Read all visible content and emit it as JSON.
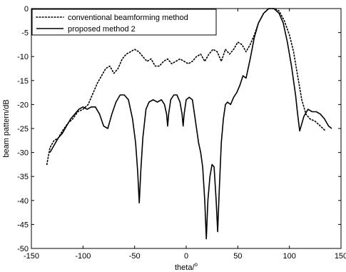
{
  "chart_data": {
    "type": "line",
    "title": "",
    "xlabel": "theta/",
    "xlabel_sup": "o",
    "ylabel": "beam pattern/dB",
    "xlim": [
      -150,
      150
    ],
    "ylim": [
      -50,
      0
    ],
    "xticks": [
      -150,
      -100,
      -50,
      0,
      50,
      100,
      150
    ],
    "yticks": [
      0,
      -5,
      -10,
      -15,
      -20,
      -25,
      -30,
      -35,
      -40,
      -45,
      -50
    ],
    "grid": false,
    "legend_position": "top-left",
    "series": [
      {
        "name": "conventional beamforming method",
        "style": "dotted",
        "color": "#000000",
        "points": [
          [
            -135,
            -32.5
          ],
          [
            -132,
            -29
          ],
          [
            -128,
            -27.5
          ],
          [
            -124,
            -27
          ],
          [
            -120,
            -25.5
          ],
          [
            -115,
            -24
          ],
          [
            -110,
            -23
          ],
          [
            -105,
            -21.5
          ],
          [
            -100,
            -21
          ],
          [
            -95,
            -20
          ],
          [
            -90,
            -17.5
          ],
          [
            -86,
            -15.5
          ],
          [
            -82,
            -14
          ],
          [
            -78,
            -12.5
          ],
          [
            -74,
            -12
          ],
          [
            -70,
            -13.5
          ],
          [
            -66,
            -12.5
          ],
          [
            -62,
            -10.5
          ],
          [
            -58,
            -9.5
          ],
          [
            -54,
            -9
          ],
          [
            -50,
            -8.5
          ],
          [
            -46,
            -9
          ],
          [
            -42,
            -10
          ],
          [
            -38,
            -11
          ],
          [
            -34,
            -10.5
          ],
          [
            -30,
            -12
          ],
          [
            -26,
            -12
          ],
          [
            -22,
            -11
          ],
          [
            -18,
            -10.5
          ],
          [
            -14,
            -11.5
          ],
          [
            -10,
            -11
          ],
          [
            -6,
            -10.5
          ],
          [
            -2,
            -11
          ],
          [
            2,
            -11.5
          ],
          [
            6,
            -11
          ],
          [
            10,
            -10
          ],
          [
            14,
            -9.5
          ],
          [
            18,
            -11
          ],
          [
            22,
            -9.5
          ],
          [
            26,
            -8.5
          ],
          [
            30,
            -9
          ],
          [
            34,
            -11
          ],
          [
            38,
            -8.5
          ],
          [
            42,
            -9.5
          ],
          [
            46,
            -8.5
          ],
          [
            50,
            -7
          ],
          [
            54,
            -7.5
          ],
          [
            58,
            -9
          ],
          [
            62,
            -7.5
          ],
          [
            66,
            -5.5
          ],
          [
            70,
            -3
          ],
          [
            75,
            -1
          ],
          [
            80,
            0
          ],
          [
            85,
            0
          ],
          [
            90,
            -0.5
          ],
          [
            95,
            -2.5
          ],
          [
            100,
            -5.5
          ],
          [
            104,
            -9
          ],
          [
            108,
            -14
          ],
          [
            112,
            -19
          ],
          [
            116,
            -22
          ],
          [
            120,
            -23
          ],
          [
            125,
            -23.5
          ],
          [
            130,
            -24.5
          ],
          [
            135,
            -25.5
          ]
        ]
      },
      {
        "name": "proposed method 2",
        "style": "solid",
        "color": "#000000",
        "points": [
          [
            -132,
            -30
          ],
          [
            -128,
            -28.5
          ],
          [
            -124,
            -27
          ],
          [
            -120,
            -26
          ],
          [
            -116,
            -24.5
          ],
          [
            -112,
            -23
          ],
          [
            -108,
            -22
          ],
          [
            -104,
            -21
          ],
          [
            -100,
            -20.5
          ],
          [
            -96,
            -21
          ],
          [
            -92,
            -20.5
          ],
          [
            -88,
            -20.5
          ],
          [
            -84,
            -22
          ],
          [
            -80,
            -24.5
          ],
          [
            -76,
            -25
          ],
          [
            -72,
            -22
          ],
          [
            -68,
            -19.5
          ],
          [
            -64,
            -18
          ],
          [
            -60,
            -18
          ],
          [
            -56,
            -19
          ],
          [
            -52,
            -23
          ],
          [
            -49,
            -28
          ],
          [
            -47,
            -34
          ],
          [
            -45.5,
            -40.5
          ],
          [
            -44,
            -34
          ],
          [
            -42,
            -27
          ],
          [
            -39,
            -21
          ],
          [
            -36,
            -19.5
          ],
          [
            -32,
            -19
          ],
          [
            -28,
            -19.5
          ],
          [
            -24,
            -19
          ],
          [
            -21,
            -20
          ],
          [
            -19,
            -22
          ],
          [
            -18,
            -24.5
          ],
          [
            -17,
            -22
          ],
          [
            -15,
            -19
          ],
          [
            -12,
            -18
          ],
          [
            -9,
            -18
          ],
          [
            -6,
            -19.5
          ],
          [
            -4,
            -22
          ],
          [
            -3,
            -24.5
          ],
          [
            -2,
            -22
          ],
          [
            0,
            -19
          ],
          [
            3,
            -18.5
          ],
          [
            6,
            -19
          ],
          [
            8,
            -22
          ],
          [
            10,
            -25
          ],
          [
            12,
            -28
          ],
          [
            14,
            -30
          ],
          [
            16,
            -33
          ],
          [
            18,
            -40
          ],
          [
            19.5,
            -48
          ],
          [
            21,
            -40
          ],
          [
            23,
            -35
          ],
          [
            25,
            -32.5
          ],
          [
            27,
            -33
          ],
          [
            29,
            -40
          ],
          [
            30.5,
            -46.5
          ],
          [
            32,
            -38
          ],
          [
            34,
            -28
          ],
          [
            36,
            -23
          ],
          [
            38,
            -20
          ],
          [
            40,
            -19.5
          ],
          [
            43,
            -20
          ],
          [
            46,
            -18.5
          ],
          [
            49,
            -17.5
          ],
          [
            52,
            -16
          ],
          [
            55,
            -14
          ],
          [
            58,
            -14.5
          ],
          [
            62,
            -10.5
          ],
          [
            66,
            -6
          ],
          [
            70,
            -3
          ],
          [
            75,
            -1
          ],
          [
            80,
            0
          ],
          [
            85,
            0
          ],
          [
            90,
            -1
          ],
          [
            94,
            -3
          ],
          [
            98,
            -7
          ],
          [
            102,
            -12
          ],
          [
            106,
            -18
          ],
          [
            108,
            -22
          ],
          [
            110,
            -25.5
          ],
          [
            112,
            -24
          ],
          [
            114,
            -22.5
          ],
          [
            118,
            -21
          ],
          [
            122,
            -21.5
          ],
          [
            126,
            -21.5
          ],
          [
            130,
            -22
          ],
          [
            134,
            -23
          ],
          [
            138,
            -24.5
          ],
          [
            141,
            -25
          ]
        ]
      }
    ]
  }
}
